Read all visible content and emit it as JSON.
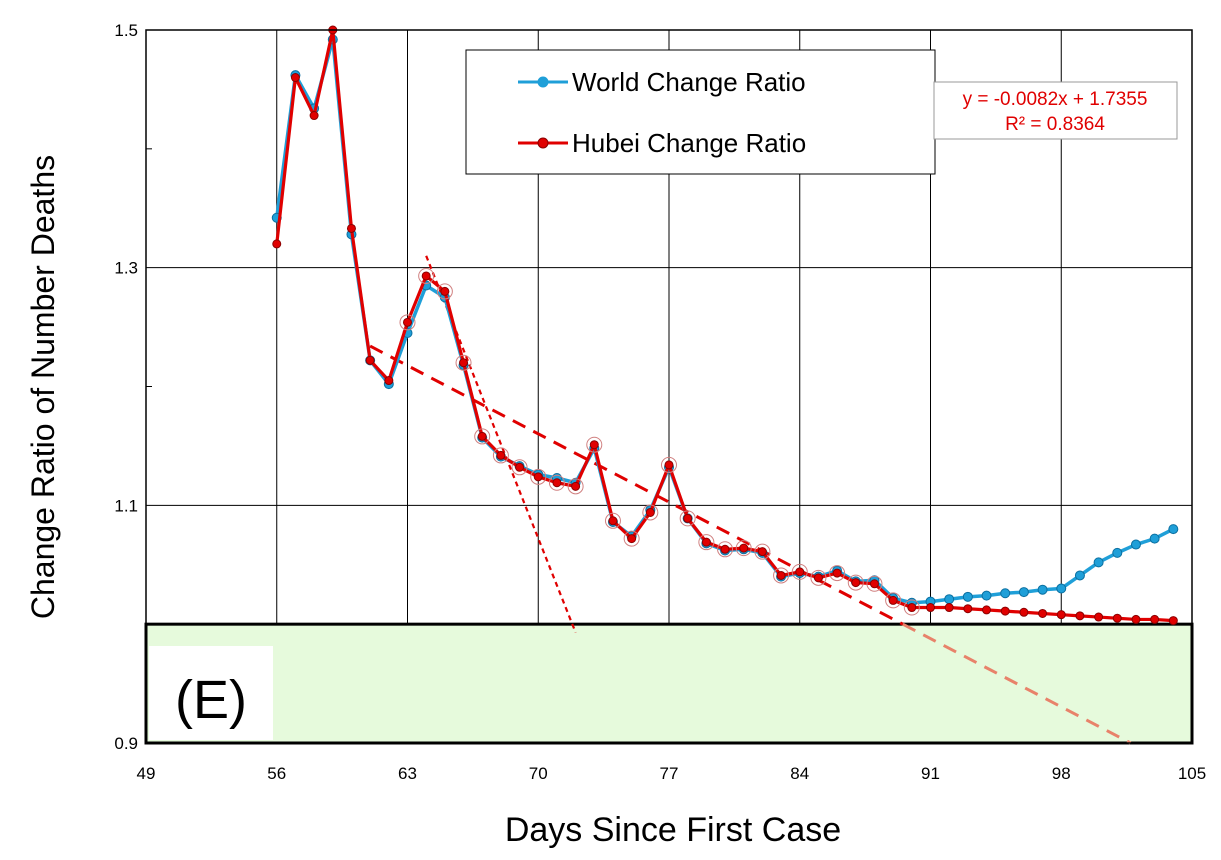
{
  "chart_data": {
    "type": "line",
    "panel_label": "(E)",
    "xlabel": "Days Since First Case",
    "ylabel": "Change  Ratio of Number Deaths",
    "xlim": [
      49,
      105
    ],
    "ylim": [
      0.9,
      1.5
    ],
    "x_ticks": [
      "49",
      "56",
      "63",
      "70",
      "77",
      "84",
      "91",
      "98",
      "105"
    ],
    "y_ticks": [
      "0.9",
      "1.1",
      "1.3",
      "1.5"
    ],
    "grid": true,
    "legend_position": "top-center",
    "highlight_band": {
      "y_from": 0.9,
      "y_to": 1.0,
      "color": "#e6fadc"
    },
    "series": [
      {
        "name": "World Change Ratio",
        "color": "#1f9fd8",
        "x": [
          56,
          57,
          58,
          59,
          60,
          61,
          62,
          63,
          64,
          65,
          66,
          67,
          68,
          69,
          70,
          71,
          72,
          73,
          74,
          75,
          76,
          77,
          78,
          79,
          80,
          81,
          82,
          83,
          84,
          85,
          86,
          87,
          88,
          89,
          90,
          91,
          92,
          93,
          94,
          95,
          96,
          97,
          98,
          99,
          100,
          101,
          102,
          103,
          104
        ],
        "y": [
          1.342,
          1.462,
          1.434,
          1.492,
          1.328,
          1.222,
          1.202,
          1.245,
          1.285,
          1.275,
          1.218,
          1.157,
          1.141,
          1.133,
          1.126,
          1.123,
          1.119,
          1.148,
          1.086,
          1.074,
          1.096,
          1.132,
          1.089,
          1.068,
          1.062,
          1.063,
          1.06,
          1.04,
          1.043,
          1.04,
          1.045,
          1.036,
          1.037,
          1.022,
          1.018,
          1.019,
          1.021,
          1.023,
          1.024,
          1.026,
          1.027,
          1.029,
          1.03,
          1.041,
          1.052,
          1.06,
          1.067,
          1.072,
          1.08
        ]
      },
      {
        "name": "Hubei Change Ratio",
        "color": "#e00000",
        "x": [
          56,
          57,
          58,
          59,
          60,
          61,
          62,
          63,
          64,
          65,
          66,
          67,
          68,
          69,
          70,
          71,
          72,
          73,
          74,
          75,
          76,
          77,
          78,
          79,
          80,
          81,
          82,
          83,
          84,
          85,
          86,
          87,
          88,
          89,
          90,
          91,
          92,
          93,
          94,
          95,
          96,
          97,
          98,
          99,
          100,
          101,
          102,
          103,
          104
        ],
        "y": [
          1.32,
          1.46,
          1.428,
          1.5,
          1.333,
          1.222,
          1.205,
          1.254,
          1.293,
          1.28,
          1.22,
          1.158,
          1.142,
          1.132,
          1.124,
          1.119,
          1.116,
          1.151,
          1.087,
          1.072,
          1.094,
          1.134,
          1.089,
          1.069,
          1.063,
          1.064,
          1.061,
          1.041,
          1.044,
          1.039,
          1.043,
          1.035,
          1.034,
          1.02,
          1.014,
          1.014,
          1.014,
          1.013,
          1.012,
          1.011,
          1.01,
          1.009,
          1.008,
          1.007,
          1.006,
          1.005,
          1.004,
          1.004,
          1.003
        ]
      }
    ],
    "trendlines": [
      {
        "label": "linear fit",
        "x": [
          61,
          105
        ],
        "y": [
          1.234,
          0.873
        ],
        "color": "#e00000",
        "color_below_band": "#e8826a",
        "style": "dashed"
      },
      {
        "label": "steep fit",
        "x": [
          64,
          72
        ],
        "y": [
          1.31,
          0.993
        ],
        "color": "#e00000",
        "style": "dotted"
      }
    ],
    "equation": {
      "line1": "y = -0.0082x + 1.7355",
      "line2": "R² = 0.8364",
      "color": "#e00000"
    }
  }
}
